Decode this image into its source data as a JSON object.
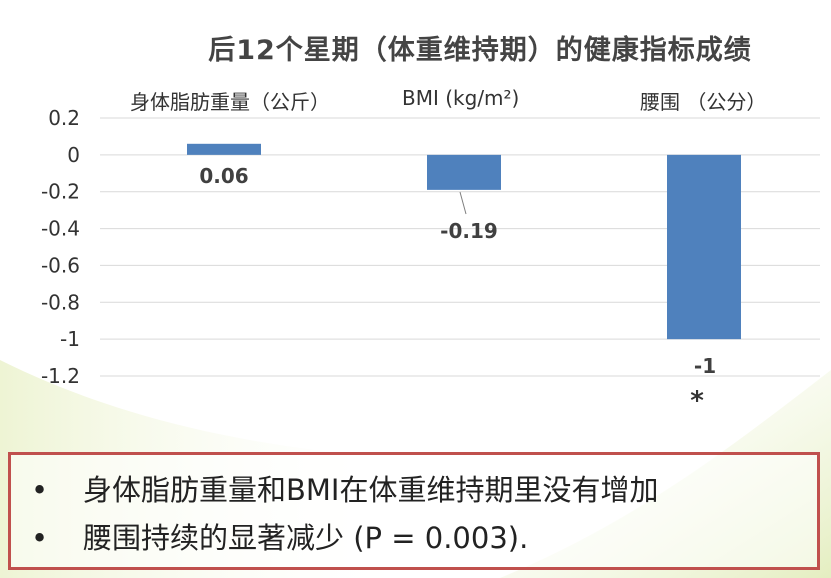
{
  "title": "后12个星期（体重维持期）的健康指标成绩",
  "chart_data": {
    "type": "bar",
    "title": "后12个星期（体重维持期）的健康指标成绩",
    "categories": [
      "身体脂肪重量（公斤）",
      "BMI (kg/m²)",
      "腰围 （公分）"
    ],
    "values": [
      0.06,
      -0.19,
      -1
    ],
    "data_labels": [
      "0.06",
      "-0.19",
      "-1"
    ],
    "significance_marks": [
      "",
      "",
      "*"
    ],
    "ylim": [
      -1.2,
      0.2
    ],
    "yticks": [
      "0.2",
      "0",
      "-0.2",
      "-0.4",
      "-0.6",
      "-0.8",
      "-1",
      "-1.2"
    ],
    "ytick_values": [
      0.2,
      0,
      -0.2,
      -0.4,
      -0.6,
      -0.8,
      -1,
      -1.2
    ],
    "grid": true,
    "bar_color": "#4f81bd",
    "grid_color": "#d9d9d9"
  },
  "notes": {
    "bullet": "•",
    "items": [
      "身体脂肪重量和BMI在体重维持期里没有增加",
      "腰围持续的显著减少 (P = 0.003)."
    ]
  },
  "colors": {
    "border": "#c0504d",
    "background_accent": "#e6f0c8"
  }
}
